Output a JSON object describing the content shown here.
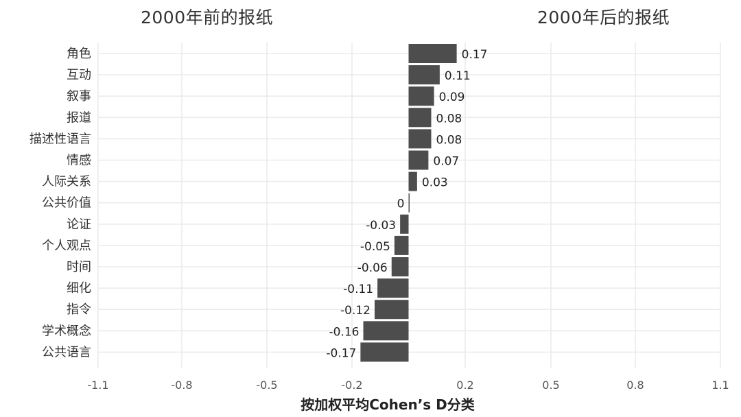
{
  "header": {
    "left_title": "2000年前的报纸",
    "right_title": "2000年后的报纸"
  },
  "chart_data": {
    "type": "bar",
    "orientation": "horizontal",
    "title": "",
    "xlabel": "按加权平均Cohen’s D分类",
    "ylabel": "",
    "categories": [
      "角色",
      "互动",
      "叙事",
      "报道",
      "描述性语言",
      "情感",
      "人际关系",
      "公共价值",
      "论证",
      "个人观点",
      "时间",
      "细化",
      "指令",
      "学术概念",
      "公共语言"
    ],
    "values": [
      0.17,
      0.11,
      0.09,
      0.08,
      0.08,
      0.07,
      0.03,
      0,
      -0.03,
      -0.05,
      -0.06,
      -0.11,
      -0.12,
      -0.16,
      -0.17
    ],
    "value_labels": [
      "0.17",
      "0.11",
      "0.09",
      "0.08",
      "0.08",
      "0.07",
      "0.03",
      "0",
      "-0.03",
      "-0.05",
      "-0.06",
      "-0.11",
      "-0.12",
      "-0.16",
      "-0.17"
    ],
    "xlim": [
      -1.1,
      1.1
    ],
    "xticks": [
      -1.1,
      -0.8,
      -0.5,
      -0.2,
      0.2,
      0.5,
      0.8,
      1.1
    ],
    "xtick_labels": [
      "-1.1",
      "-0.8",
      "-0.5",
      "-0.2",
      "0.2",
      "0.5",
      "0.8",
      "1.1"
    ],
    "grid": true,
    "bar_color": "#4d4d4d",
    "grid_color": "#ebebeb"
  }
}
